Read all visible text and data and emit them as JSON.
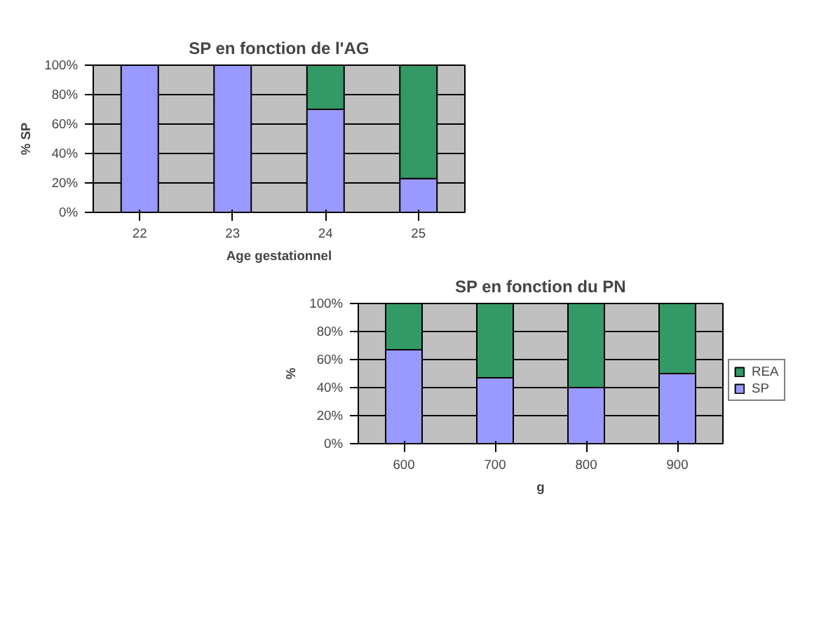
{
  "chart_data": [
    {
      "type": "bar",
      "title": "SP en fonction de l'AG",
      "xlabel": "Age gestationnel",
      "ylabel": "% SP",
      "categories": [
        "22",
        "23",
        "24",
        "25"
      ],
      "stacked": true,
      "series": [
        {
          "color": "#9999ff",
          "values": [
            100,
            100,
            70,
            23
          ]
        },
        {
          "color": "#339966",
          "values": [
            0,
            0,
            30,
            77
          ]
        }
      ],
      "ylim": [
        0,
        100
      ],
      "yticks": [
        {
          "value": 0,
          "label": "0%"
        },
        {
          "value": 20,
          "label": "20%"
        },
        {
          "value": 40,
          "label": "40%"
        },
        {
          "value": 60,
          "label": "60%"
        },
        {
          "value": 80,
          "label": "80%"
        },
        {
          "value": 100,
          "label": "100%"
        }
      ],
      "grid": "y"
    },
    {
      "type": "bar",
      "title": "SP en fonction du PN",
      "xlabel": "g",
      "ylabel": "%",
      "categories": [
        "600",
        "700",
        "800",
        "900"
      ],
      "stacked": true,
      "series": [
        {
          "name": "SP",
          "color": "#9999ff",
          "values": [
            67,
            47,
            40,
            50
          ]
        },
        {
          "name": "REA",
          "color": "#339966",
          "values": [
            33,
            53,
            60,
            50
          ]
        }
      ],
      "ylim": [
        0,
        100
      ],
      "yticks": [
        {
          "value": 0,
          "label": "0%"
        },
        {
          "value": 20,
          "label": "20%"
        },
        {
          "value": 40,
          "label": "40%"
        },
        {
          "value": 60,
          "label": "60%"
        },
        {
          "value": 80,
          "label": "80%"
        },
        {
          "value": 100,
          "label": "100%"
        }
      ],
      "grid": "y",
      "legend": "right"
    }
  ]
}
